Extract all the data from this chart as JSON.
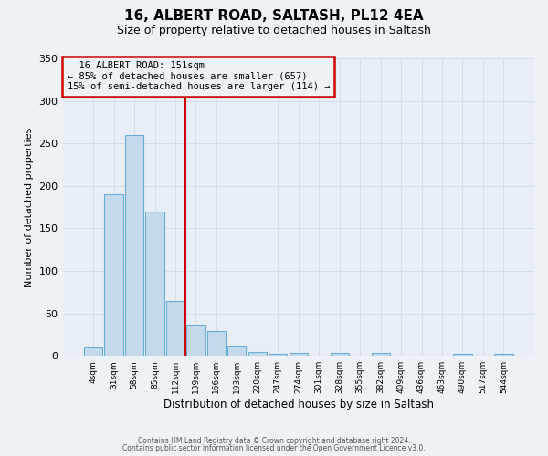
{
  "title": "16, ALBERT ROAD, SALTASH, PL12 4EA",
  "subtitle": "Size of property relative to detached houses in Saltash",
  "xlabel": "Distribution of detached houses by size in Saltash",
  "ylabel": "Number of detached properties",
  "bin_labels": [
    "4sqm",
    "31sqm",
    "58sqm",
    "85sqm",
    "112sqm",
    "139sqm",
    "166sqm",
    "193sqm",
    "220sqm",
    "247sqm",
    "274sqm",
    "301sqm",
    "328sqm",
    "355sqm",
    "382sqm",
    "409sqm",
    "436sqm",
    "463sqm",
    "490sqm",
    "517sqm",
    "544sqm"
  ],
  "bar_heights": [
    10,
    190,
    260,
    170,
    65,
    37,
    29,
    12,
    5,
    2,
    3,
    0,
    3,
    0,
    3,
    0,
    0,
    0,
    2,
    0,
    2
  ],
  "bar_color": "#c5d9ed",
  "bar_edgecolor": "#6aadd5",
  "vline_x": 4.5,
  "vline_color": "#cc0000",
  "ylim": [
    0,
    350
  ],
  "yticks": [
    0,
    50,
    100,
    150,
    200,
    250,
    300,
    350
  ],
  "annotation_title": "16 ALBERT ROAD: 151sqm",
  "annotation_line1": "← 85% of detached houses are smaller (657)",
  "annotation_line2": "15% of semi-detached houses are larger (114) →",
  "annotation_box_color": "#cc0000",
  "footer1": "Contains HM Land Registry data © Crown copyright and database right 2024.",
  "footer2": "Contains public sector information licensed under the Open Government Licence v3.0.",
  "background_color": "#eef2f7",
  "grid_color": "#d4dce8",
  "plot_bg_color": "#e8eef5"
}
